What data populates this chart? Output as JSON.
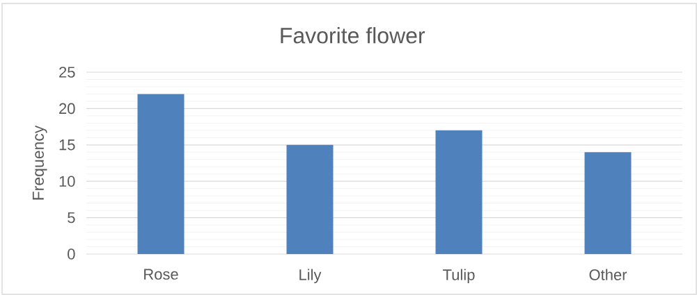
{
  "chart_data": {
    "type": "bar",
    "title": "Favorite flower",
    "ylabel": "Frequency",
    "categories": [
      "Rose",
      "Lily",
      "Tulip",
      "Other"
    ],
    "values": [
      22,
      15,
      17,
      14
    ],
    "color": "#4f81bd",
    "ylim": [
      0,
      25
    ],
    "yticks": [
      0,
      5,
      10,
      15,
      20,
      25
    ],
    "grid": "y"
  }
}
